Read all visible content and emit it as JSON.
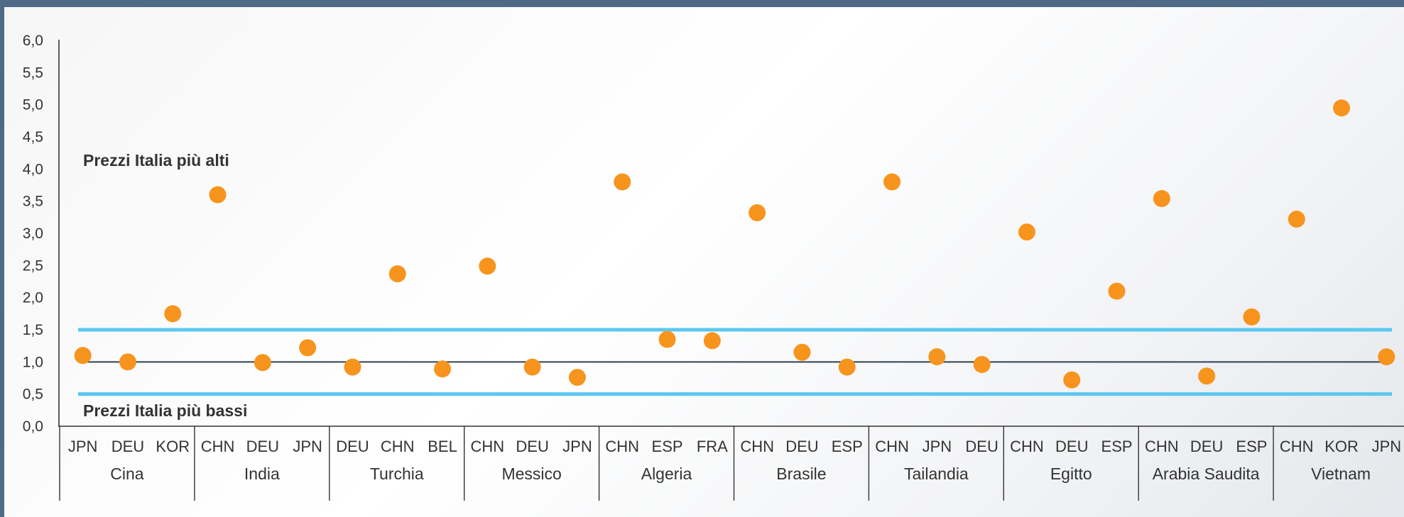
{
  "chart_data": {
    "type": "scatter",
    "title": "",
    "xlabel": "",
    "ylabel": "",
    "ylim": [
      0,
      6
    ],
    "y_ticks": [
      "6,0",
      "5,5",
      "5,0",
      "4,5",
      "4,0",
      "3,5",
      "3,0",
      "2,5",
      "2,0",
      "1,5",
      "1,0",
      "0,5",
      "0,0"
    ],
    "annotations": {
      "upper": "Prezzi Italia più alti",
      "lower": "Prezzi Italia più bassi"
    },
    "reference_lines": [
      0.5,
      1.0,
      1.5
    ],
    "marker_color": "#f7941d",
    "band_color": "#5bc8f0",
    "baseline_color": "#2f4150",
    "groups": [
      {
        "name": "Cina",
        "categories": [
          "JPN",
          "DEU",
          "KOR"
        ],
        "values": [
          1.1,
          1.0,
          1.75
        ]
      },
      {
        "name": "India",
        "categories": [
          "CHN",
          "DEU",
          "JPN"
        ],
        "values": [
          3.6,
          0.99,
          1.22
        ]
      },
      {
        "name": "Turchia",
        "categories": [
          "DEU",
          "CHN",
          "BEL"
        ],
        "values": [
          0.92,
          2.37,
          0.89
        ]
      },
      {
        "name": "Messico",
        "categories": [
          "CHN",
          "DEU",
          "JPN"
        ],
        "values": [
          2.49,
          0.92,
          0.76
        ]
      },
      {
        "name": "Algeria",
        "categories": [
          "CHN",
          "ESP",
          "FRA"
        ],
        "values": [
          3.8,
          1.35,
          1.33
        ]
      },
      {
        "name": "Brasile",
        "categories": [
          "CHN",
          "DEU",
          "ESP"
        ],
        "values": [
          3.32,
          1.15,
          0.92
        ]
      },
      {
        "name": "Tailandia",
        "categories": [
          "CHN",
          "JPN",
          "DEU"
        ],
        "values": [
          3.8,
          1.08,
          0.96
        ]
      },
      {
        "name": "Egitto",
        "categories": [
          "CHN",
          "DEU",
          "ESP"
        ],
        "values": [
          3.02,
          0.72,
          2.1
        ]
      },
      {
        "name": "Arabia Saudita",
        "categories": [
          "CHN",
          "DEU",
          "ESP"
        ],
        "values": [
          3.54,
          0.78,
          1.7
        ]
      },
      {
        "name": "Vietnam",
        "categories": [
          "CHN",
          "KOR",
          "JPN"
        ],
        "values": [
          3.22,
          4.95,
          1.08
        ]
      }
    ]
  }
}
